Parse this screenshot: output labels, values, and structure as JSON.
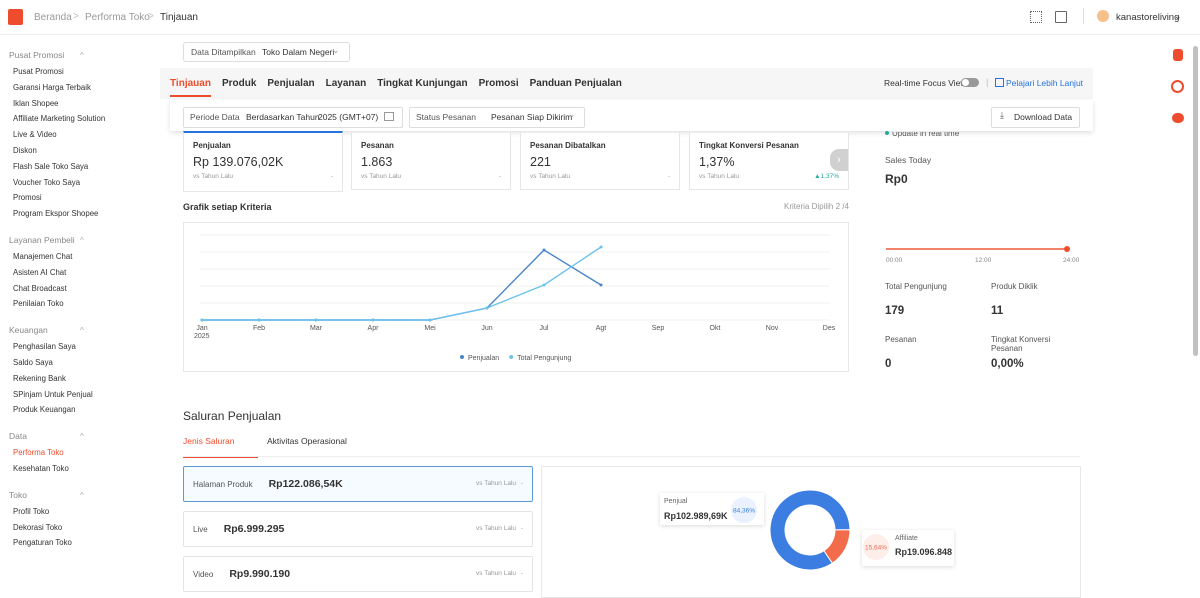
{
  "breadcrumb": [
    "Beranda",
    "Performa Toko",
    "Tinjauan"
  ],
  "user": "kanastoreliving",
  "sidebar": [
    {
      "title": "Pusat Promosi",
      "items": [
        "Pusat Promosi",
        "Garansi Harga Terbaik",
        "Iklan Shopee",
        "Affiliate Marketing Solution",
        "Live & Video",
        "Diskon",
        "Flash Sale Toko Saya",
        "Voucher Toko Saya",
        "Promosi",
        "Program Ekspor Shopee"
      ]
    },
    {
      "title": "Layanan Pembeli",
      "items": [
        "Manajemen Chat",
        "Asisten AI Chat",
        "Chat Broadcast",
        "Penilaian Toko"
      ]
    },
    {
      "title": "Keuangan",
      "items": [
        "Penghasilan Saya",
        "Saldo Saya",
        "Rekening Bank",
        "SPinjam Untuk Penjual",
        "Produk Keuangan"
      ]
    },
    {
      "title": "Data",
      "items": [
        "Performa Toko",
        "Kesehatan Toko"
      ]
    },
    {
      "title": "Toko",
      "items": [
        "Profil Toko",
        "Dekorasi Toko",
        "Pengaturan Toko"
      ]
    }
  ],
  "display_filter": {
    "label": "Data Ditampilkan",
    "value": "Toko Dalam Negeri"
  },
  "tabs": [
    "Tinjauan",
    "Produk",
    "Penjualan",
    "Layanan",
    "Tingkat Kunjungan",
    "Promosi",
    "Panduan Penjualan"
  ],
  "realtime": {
    "toggle": "Real-time Focus View",
    "link": "Pelajari Lebih Lanjut"
  },
  "filters": {
    "period_label": "Periode Data",
    "period_type": "Berdasarkan Tahun",
    "period_value": "2025 (GMT+07)",
    "status_label": "Status Pesanan",
    "status_value": "Pesanan Siap Dikirim",
    "download": "Download Data"
  },
  "metrics": [
    {
      "label": "Penjualan",
      "value": "Rp 139.076,02K",
      "compare": "vs Tahun Lalu",
      "change": "-"
    },
    {
      "label": "Pesanan",
      "value": "1.863",
      "compare": "vs Tahun Lalu",
      "change": "-"
    },
    {
      "label": "Pesanan Dibatalkan",
      "value": "221",
      "compare": "vs Tahun Lalu",
      "change": "-"
    },
    {
      "label": "Tingkat Konversi Pesanan",
      "value": "1,37%",
      "compare": "vs Tahun Lalu",
      "change": "▲1,37%"
    }
  ],
  "chart": {
    "type": "line",
    "title": "Grafik setiap Kriteria",
    "selected": "Kriteria Dipilih 2 /4",
    "categories": [
      "Jan",
      "Feb",
      "Mar",
      "Apr",
      "Mei",
      "Jun",
      "Jul",
      "Agt",
      "Sep",
      "Okt",
      "Nov",
      "Des"
    ],
    "year": "2025",
    "series": [
      {
        "name": "Penjualan",
        "color": "#4a86c8",
        "values": [
          0,
          0,
          0,
          0,
          0,
          12,
          70,
          35,
          null,
          null,
          null,
          null
        ]
      },
      {
        "name": "Total Pengunjung",
        "color": "#6cc3ec",
        "values": [
          0,
          0,
          0,
          0,
          0,
          12,
          35,
          73,
          null,
          null,
          null,
          null
        ]
      }
    ]
  },
  "realtime_panel": {
    "status": "Update in real time",
    "sales_label": "Sales Today",
    "sales_value": "Rp0",
    "times": [
      "00:00",
      "12:00",
      "24:00"
    ],
    "stats": [
      {
        "label": "Total Pengunjung",
        "value": "179"
      },
      {
        "label": "Produk Diklik",
        "value": "11"
      },
      {
        "label": "Pesanan",
        "value": "0"
      },
      {
        "label": "Tingkat Konversi Pesanan",
        "value": "0,00%"
      }
    ]
  },
  "channels": {
    "title": "Saluran Penjualan",
    "tabs": [
      "Jenis Saluran",
      "Aktivitas Operasional"
    ],
    "items": [
      {
        "name": "Halaman Produk",
        "value": "Rp122.086,54K",
        "compare": "vs Tahun Lalu",
        "change": "-"
      },
      {
        "name": "Live",
        "value": "Rp6.999.295",
        "compare": "vs Tahun Lalu",
        "change": "-"
      },
      {
        "name": "Video",
        "value": "Rp9.990.190",
        "compare": "vs Tahun Lalu",
        "change": "-"
      }
    ],
    "donut": {
      "type": "pie",
      "categories": [
        "Penjual",
        "Affiliate"
      ],
      "amounts": [
        "Rp102.989,69K",
        "Rp19.096.848"
      ],
      "values": [
        84.36,
        15.64
      ],
      "value_labels": [
        "84,36%",
        "15,64%"
      ],
      "colors": [
        "#3b7de0",
        "#f26b4b"
      ]
    }
  }
}
